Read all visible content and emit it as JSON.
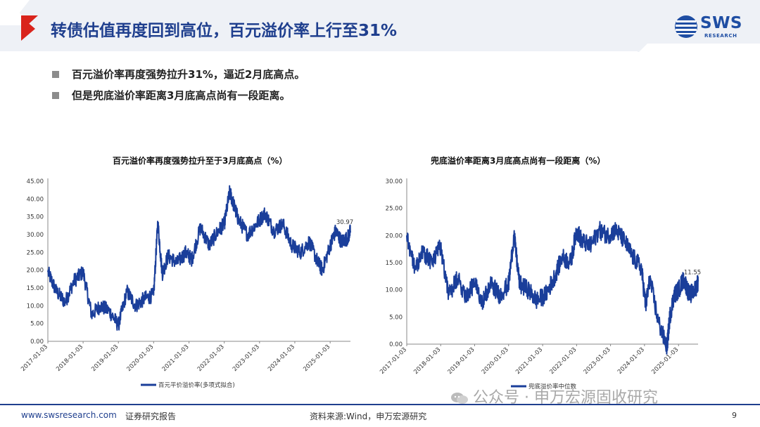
{
  "header": {
    "title": "转债估值再度回到高位，百元溢价率上行至31%",
    "logo_text": "SWS",
    "logo_sub": "RESEARCH"
  },
  "bullets": [
    "百元溢价率再度强势拉升31%，逼近2月底高点。",
    "但是兜底溢价率距离3月底高点尚有一段距离。"
  ],
  "colors": {
    "line": "#1a3e9a",
    "accent_red": "#d9241c",
    "title_blue": "#1f3f8e"
  },
  "chart_data": [
    {
      "type": "line",
      "title": "百元溢价率再度强势拉升至于3月底高点（%）",
      "ylim": [
        0,
        45
      ],
      "yticks": [
        "0.00",
        "5.00",
        "10.00",
        "15.00",
        "20.00",
        "25.00",
        "30.00",
        "35.00",
        "40.00",
        "45.00"
      ],
      "xticks": [
        "2017-01-03",
        "2018-01-03",
        "2019-01-03",
        "2020-01-03",
        "2021-01-03",
        "2022-01-03",
        "2023-01-03",
        "2024-01-03",
        "2025-01-03"
      ],
      "x_range": [
        "2017-01-03",
        "2025-08-01"
      ],
      "last_value_label": "30.97",
      "series": [
        {
          "name": "百元平价溢价率(多项式拟合)",
          "x": [
            "2017-01-03",
            "2017-04-01",
            "2017-07-01",
            "2017-10-01",
            "2018-01-03",
            "2018-04-01",
            "2018-07-01",
            "2018-10-01",
            "2019-01-03",
            "2019-04-01",
            "2019-07-01",
            "2019-10-01",
            "2020-01-03",
            "2020-02-15",
            "2020-04-01",
            "2020-06-01",
            "2020-09-01",
            "2020-12-01",
            "2021-02-01",
            "2021-05-01",
            "2021-08-01",
            "2021-11-01",
            "2022-01-03",
            "2022-03-01",
            "2022-04-15",
            "2022-06-01",
            "2022-09-01",
            "2022-12-01",
            "2023-03-01",
            "2023-06-01",
            "2023-09-01",
            "2023-12-01",
            "2024-03-01",
            "2024-06-01",
            "2024-09-01",
            "2024-10-15",
            "2025-01-03",
            "2025-03-01",
            "2025-05-01",
            "2025-07-01",
            "2025-08-01"
          ],
          "values": [
            19.5,
            14,
            11,
            17,
            19.5,
            7.5,
            10,
            8.5,
            4.5,
            14,
            10,
            12,
            13,
            33.5,
            19,
            24,
            22,
            25,
            23,
            32,
            27,
            31,
            33,
            42,
            38,
            34,
            30,
            33,
            36,
            31,
            33,
            27,
            25,
            28,
            22,
            20,
            27,
            31,
            28,
            29,
            30.97
          ]
        }
      ]
    },
    {
      "type": "line",
      "title": "兜底溢价率距离3月底高点尚有一段距离（%）",
      "ylim": [
        0,
        30
      ],
      "yticks": [
        "0.00",
        "5.00",
        "10.00",
        "15.00",
        "20.00",
        "25.00",
        "30.00"
      ],
      "xticks": [
        "2017-01-03",
        "2018-01-03",
        "2019-01-03",
        "2020-01-03",
        "2021-01-03",
        "2022-01-03",
        "2023-01-03",
        "2024-01-03",
        "2025-01-03"
      ],
      "x_range": [
        "2017-01-03",
        "2025-08-01"
      ],
      "last_value_label": "11.55",
      "series": [
        {
          "name": "兜底溢价率中位数",
          "x": [
            "2017-01-03",
            "2017-04-01",
            "2017-07-01",
            "2017-10-01",
            "2018-01-03",
            "2018-04-01",
            "2018-07-01",
            "2018-10-01",
            "2019-01-03",
            "2019-04-01",
            "2019-07-01",
            "2019-10-01",
            "2020-01-03",
            "2020-03-01",
            "2020-05-01",
            "2020-08-01",
            "2020-11-01",
            "2021-02-01",
            "2021-05-01",
            "2021-08-01",
            "2021-11-01",
            "2022-01-03",
            "2022-03-01",
            "2022-06-01",
            "2022-09-01",
            "2022-12-01",
            "2023-03-01",
            "2023-06-01",
            "2023-09-01",
            "2023-12-01",
            "2024-01-15",
            "2024-03-01",
            "2024-06-01",
            "2024-09-01",
            "2024-10-01",
            "2024-11-15",
            "2025-01-03",
            "2025-03-01",
            "2025-05-01",
            "2025-07-01",
            "2025-08-01"
          ],
          "values": [
            20,
            14,
            17,
            15,
            18,
            9,
            12,
            9,
            11,
            8,
            11,
            9,
            11,
            20,
            11,
            10,
            8,
            9,
            12,
            16,
            15,
            21,
            19,
            18,
            21,
            20,
            21,
            19,
            16,
            14,
            7,
            12,
            4,
            -0.5,
            5,
            9,
            10,
            12,
            9,
            10,
            11.55
          ]
        }
      ]
    }
  ],
  "footer": {
    "url": "www.swsresearch.com",
    "doc_type": "证券研究报告",
    "source": "资料来源:Wind，申万宏源研究",
    "page": "9",
    "watermark": "公众号 · 申万宏源固收研究"
  }
}
